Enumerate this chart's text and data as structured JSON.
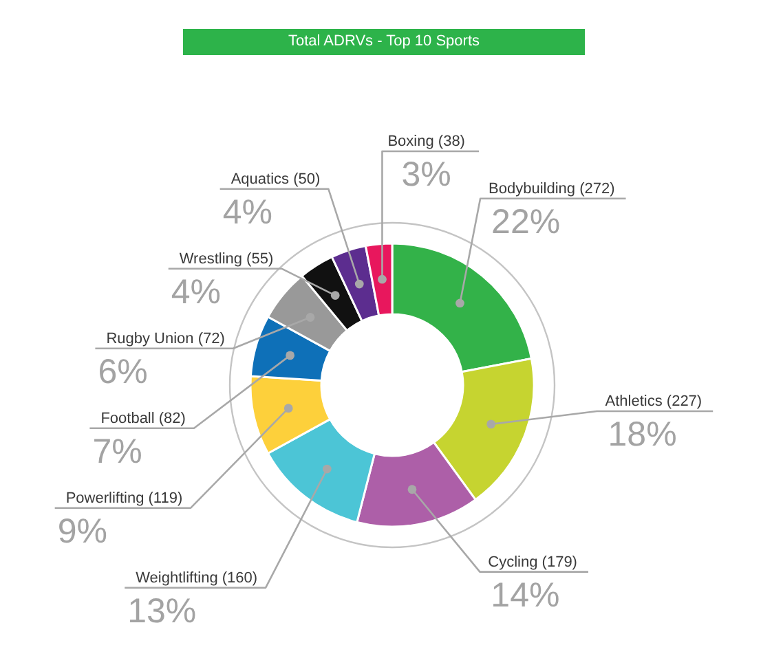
{
  "chart_data": {
    "type": "donut",
    "title": "Total ADRVs - Top 10 Sports",
    "categories": [
      "Bodybuilding (272)",
      "Athletics (227)",
      "Cycling (179)",
      "Weightlifting (160)",
      "Powerlifting (119)",
      "Football (82)",
      "Rugby Union (72)",
      "Wrestling (55)",
      "Aquatics (50)",
      "Boxing (38)"
    ],
    "values": [
      22,
      18,
      14,
      13,
      9,
      7,
      6,
      4,
      4,
      3
    ],
    "colors": [
      "#33b249",
      "#c6d430",
      "#ad5fa8",
      "#4cc5d6",
      "#fdd03b",
      "#0e70b8",
      "#999999",
      "#111111",
      "#5c2d8f",
      "#e8175d"
    ],
    "value_labels": [
      "22%",
      "18%",
      "14%",
      "13%",
      "9%",
      "7%",
      "6%",
      "4%",
      "4%",
      "3%"
    ]
  }
}
